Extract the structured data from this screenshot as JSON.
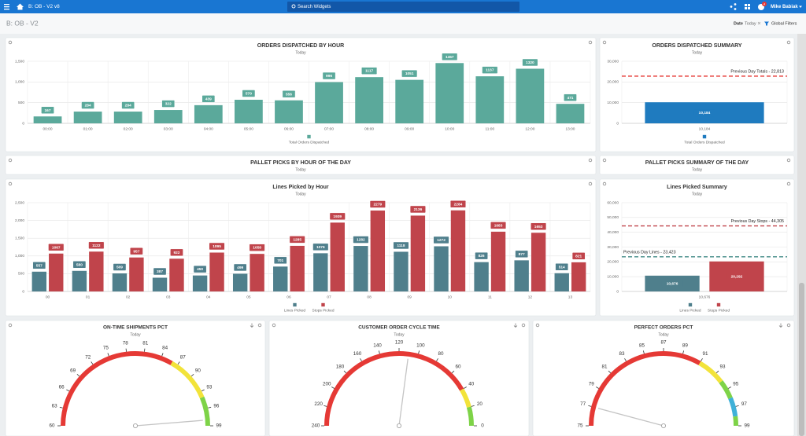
{
  "header": {
    "title": "B: OB - V2 v8",
    "search": "Search Widgets",
    "user": "Mike Babiak",
    "badge": "4"
  },
  "toolbar": {
    "page_title": "B: OB - V2",
    "date_label": "Date",
    "date_value": "Today",
    "filters": "Global Filters"
  },
  "panels": [
    {
      "title": "PALLET PICKS BY HOUR OF THE DAY",
      "subtitle": "Today"
    },
    {
      "title": "PALLET PICKS SUMMARY OF THE DAY",
      "subtitle": "Today"
    }
  ],
  "chart_data": [
    {
      "type": "bar",
      "title": "ORDERS DISPATCHED BY HOUR",
      "subtitle": "Today",
      "categories": [
        "00:00",
        "01:00",
        "02:00",
        "03:00",
        "04:00",
        "05:00",
        "06:00",
        "07:00",
        "08:00",
        "09:00",
        "10:00",
        "11:00",
        "12:00",
        "13:00"
      ],
      "series": [
        {
          "name": "Total Orders Dispatched",
          "color": "#5ba99b",
          "values": [
            167,
            284,
            284,
            322,
            439,
            570,
            556,
            996,
            1117,
            1051,
            1457,
            1137,
            1320,
            471
          ]
        }
      ],
      "ylim": [
        0,
        1500
      ],
      "yticks": [
        0,
        500,
        {
          "value": 1000,
          "label": "1,000"
        },
        {
          "value": 1500,
          "label": "1,500"
        }
      ],
      "grid": true
    },
    {
      "type": "bar",
      "title": "ORDERS DISPATCHED SUMMARY",
      "subtitle": "Today",
      "categories": [
        "10,184"
      ],
      "series": [
        {
          "name": "Total Orders Dispatched",
          "color": "#1f7bbf",
          "values": [
            10184
          ],
          "value_labels": [
            "10,184"
          ]
        }
      ],
      "reference_lines": [
        {
          "value": 22813,
          "label": "Previous Day Totals - 22,813",
          "color": "#e53935"
        }
      ],
      "ylim": [
        0,
        30000
      ],
      "yticks": [
        0,
        {
          "value": 10000,
          "label": "10,000"
        },
        {
          "value": 20000,
          "label": "20,000"
        },
        {
          "value": 30000,
          "label": "30,000"
        }
      ],
      "grid": true
    },
    {
      "type": "bar",
      "title": "Lines Picked by Hour",
      "subtitle": "Today",
      "categories": [
        "00",
        "01",
        "02",
        "03",
        "04",
        "05",
        "06",
        "07",
        "08",
        "09",
        "10",
        "11",
        "12",
        "13"
      ],
      "series": [
        {
          "name": "Lines Picked",
          "color": "#4f7f8c",
          "values": [
            557,
            580,
            509,
            387,
            450,
            499,
            701,
            1076,
            1282,
            1118,
            1272,
            826,
            877,
            514
          ]
        },
        {
          "name": "Stops Picked",
          "color": "#c0444b",
          "values": [
            1067,
            1122,
            957,
            922,
            1095,
            1058,
            1285,
            1939,
            2279,
            2136,
            2284,
            1683,
            1653,
            821
          ]
        }
      ],
      "ylim": [
        0,
        2500
      ],
      "yticks": [
        0,
        500,
        {
          "value": 1000,
          "label": "1,000"
        },
        {
          "value": 1500,
          "label": "1,500"
        },
        {
          "value": 2000,
          "label": "2,000"
        },
        {
          "value": 2500,
          "label": "2,500"
        }
      ],
      "grid": true
    },
    {
      "type": "bar",
      "title": "Lines Picked Summary",
      "subtitle": "Today",
      "categories": [
        "10,676"
      ],
      "series": [
        {
          "name": "Lines Picked",
          "color": "#4f7f8c",
          "values": [
            10676
          ],
          "value_labels": [
            "10,676"
          ]
        },
        {
          "name": "Stops Picked",
          "color": "#c0444b",
          "values": [
            20292
          ],
          "value_labels": [
            "20,292"
          ]
        }
      ],
      "reference_lines": [
        {
          "value": 44305,
          "label": "Previous Day Stops - 44,305",
          "color": "#c0444b"
        },
        {
          "value": 23423,
          "label": "Previous Day Lines - 23,423",
          "color": "#2f7f7a"
        }
      ],
      "ylim": [
        0,
        60000
      ],
      "yticks": [
        0,
        {
          "value": 10000,
          "label": "10,000"
        },
        {
          "value": 20000,
          "label": "20,000"
        },
        {
          "value": 30000,
          "label": "30,000"
        },
        {
          "value": 40000,
          "label": "40,000"
        },
        {
          "value": 50000,
          "label": "50,000"
        },
        {
          "value": 60000,
          "label": "60,000"
        }
      ],
      "grid": true
    },
    {
      "type": "gauge",
      "title": "ON-TIME SHIPMENTS PCT",
      "subtitle": "Today",
      "range": [
        60,
        99
      ],
      "value": 98,
      "ticks": [
        60,
        63,
        66,
        69,
        72,
        75,
        78,
        81,
        84,
        87,
        90,
        93,
        96,
        99
      ],
      "bands": [
        {
          "from": 60,
          "to": 86,
          "color": "#e53935"
        },
        {
          "from": 86,
          "to": 94,
          "color": "#f2e33a"
        },
        {
          "from": 94,
          "to": 99,
          "color": "#7ed348"
        }
      ]
    },
    {
      "type": "gauge",
      "title": "CUSTOMER ORDER CYCLE TIME",
      "subtitle": "Today",
      "range": [
        240,
        0
      ],
      "value": 110,
      "ticks": [
        240,
        220,
        200,
        180,
        160,
        140,
        120,
        100,
        80,
        60,
        40,
        20,
        0
      ],
      "bands": [
        {
          "from": 240,
          "to": 40,
          "color": "#e53935"
        },
        {
          "from": 40,
          "to": 20,
          "color": "#f2e33a"
        },
        {
          "from": 20,
          "to": 0,
          "color": "#7ed348"
        }
      ]
    },
    {
      "type": "gauge",
      "title": "PERFECT ORDERS PCT",
      "subtitle": "Today",
      "range": [
        75,
        99
      ],
      "value": 77,
      "ticks": [
        75,
        77,
        79,
        81,
        83,
        85,
        87,
        89,
        91,
        93,
        95,
        97,
        99
      ],
      "bands": [
        {
          "from": 75,
          "to": 91,
          "color": "#e53935"
        },
        {
          "from": 91,
          "to": 94,
          "color": "#f2e33a"
        },
        {
          "from": 94,
          "to": 96,
          "color": "#7ed348"
        },
        {
          "from": 96,
          "to": 98,
          "color": "#3fb1d8"
        },
        {
          "from": 98,
          "to": 99,
          "color": "#7ed348"
        }
      ]
    }
  ]
}
